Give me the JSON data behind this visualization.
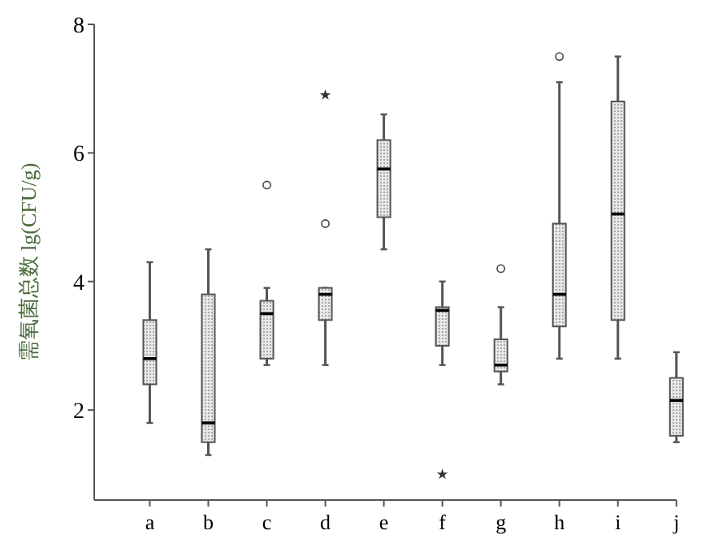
{
  "chart_data": {
    "type": "box",
    "ylabel": "需氧菌总数 lg(CFU/g)",
    "categories": [
      "a",
      "b",
      "c",
      "d",
      "e",
      "f",
      "g",
      "h",
      "i",
      "j"
    ],
    "ylim": [
      0.6,
      8
    ],
    "yticks": [
      2,
      4,
      6,
      8
    ],
    "grid": false,
    "boxes": [
      {
        "low": 1.8,
        "q1": 2.4,
        "median": 2.8,
        "q3": 3.4,
        "high": 4.3
      },
      {
        "low": 1.3,
        "q1": 1.5,
        "median": 1.8,
        "q3": 3.8,
        "high": 4.5
      },
      {
        "low": 2.7,
        "q1": 2.8,
        "median": 3.5,
        "q3": 3.7,
        "high": 3.9,
        "outliers": [
          5.5
        ]
      },
      {
        "low": 2.7,
        "q1": 3.4,
        "median": 3.8,
        "q3": 3.9,
        "high": 3.9,
        "outliers": [
          4.9
        ]
      },
      {
        "low": 4.5,
        "q1": 5.0,
        "median": 5.75,
        "q3": 6.2,
        "high": 6.6
      },
      {
        "low": 2.7,
        "q1": 3.0,
        "median": 3.55,
        "q3": 3.6,
        "high": 4.0
      },
      {
        "low": 2.4,
        "q1": 2.6,
        "median": 2.7,
        "q3": 3.1,
        "high": 3.6,
        "outliers": [
          4.2
        ]
      },
      {
        "low": 2.8,
        "q1": 3.3,
        "median": 3.8,
        "q3": 4.9,
        "high": 7.1,
        "outliers": [
          7.5
        ]
      },
      {
        "low": 2.8,
        "q1": 3.4,
        "median": 5.05,
        "q3": 6.8,
        "high": 7.5
      },
      {
        "low": 1.5,
        "q1": 1.6,
        "median": 2.15,
        "q3": 2.5,
        "high": 2.9
      }
    ],
    "series": [
      {
        "type": "scatter",
        "marker": "star",
        "color": "#333333",
        "x": [
          "d",
          "f"
        ],
        "values": [
          6.9,
          1.0
        ]
      }
    ]
  }
}
